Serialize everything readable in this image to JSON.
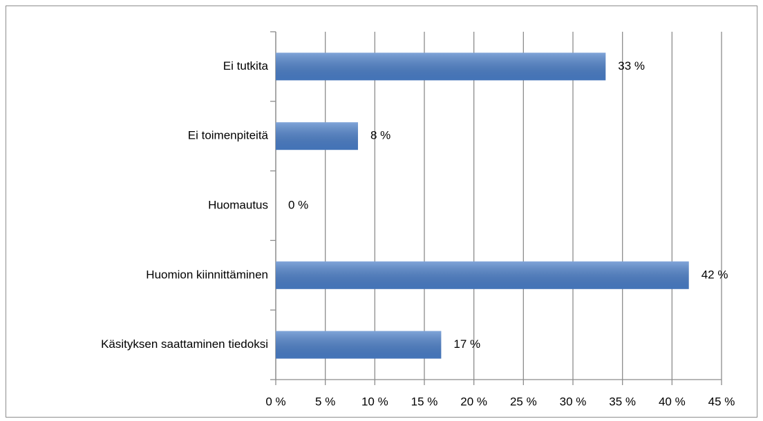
{
  "chart_data": {
    "type": "barh",
    "categories": [
      "Ei tutkita",
      "Ei toimenpiteitä",
      "Huomautus",
      "Huomion kiinnittäminen",
      "Käsityksen saattaminen tiedoksi"
    ],
    "values": [
      33.3,
      8.3,
      0,
      41.7,
      16.7
    ],
    "value_labels": [
      "33 %",
      "8 %",
      "0 %",
      "42 %",
      "17 %"
    ],
    "color": "#4a7ec8",
    "xlim": [
      0,
      45
    ],
    "xticks": [
      {
        "value": 0,
        "label": "0 %"
      },
      {
        "value": 5,
        "label": "5 %"
      },
      {
        "value": 10,
        "label": "10 %"
      },
      {
        "value": 15,
        "label": "15 %"
      },
      {
        "value": 20,
        "label": "20 %"
      },
      {
        "value": 25,
        "label": "25 %"
      },
      {
        "value": 30,
        "label": "30 %"
      },
      {
        "value": 35,
        "label": "35 %"
      },
      {
        "value": 40,
        "label": "40 %"
      },
      {
        "value": 45,
        "label": "45 %"
      }
    ],
    "grid": true
  }
}
